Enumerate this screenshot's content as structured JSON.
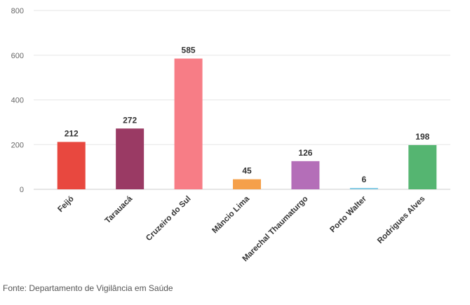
{
  "chart_data": {
    "type": "bar",
    "categories": [
      "Feijó",
      "Tarauacá",
      "Cruzeiro do Sul",
      "Mâncio Lima",
      "Marechal Thaumaturgo",
      "Porto Walter",
      "Rodrigues Alves"
    ],
    "values": [
      212,
      272,
      585,
      45,
      126,
      6,
      198
    ],
    "colors": [
      "#e8483f",
      "#9a3a64",
      "#f77d86",
      "#f5a04a",
      "#b46eb8",
      "#7ec8e3",
      "#55b571"
    ],
    "ylim": [
      0,
      800
    ],
    "yticks": [
      0,
      200,
      400,
      600,
      800
    ],
    "grid": true,
    "legend": "none",
    "title": "",
    "xlabel": "",
    "ylabel": ""
  },
  "source_note": "Fonte: Departamento de Vigilância em Saúde"
}
